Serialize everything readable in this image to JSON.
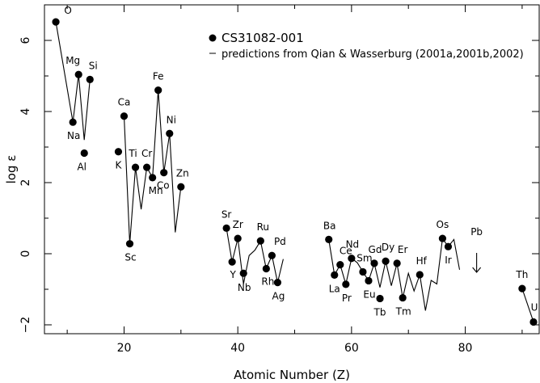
{
  "chart_data": {
    "type": "scatter",
    "xlabel": "Atomic Number (Z)",
    "ylabel": "log ε",
    "xlim": [
      6,
      93
    ],
    "ylim": [
      -2.25,
      7.0
    ],
    "x_ticks": [
      20,
      40,
      60,
      80
    ],
    "y_ticks": [
      -2,
      0,
      2,
      4,
      6
    ],
    "legend_position": "top-right",
    "legend": [
      {
        "marker": "dot",
        "text": "CS31082-001"
      },
      {
        "marker": "line",
        "text": "predictions from Qian & Wasserburg (2001a,2001b,2002)"
      }
    ],
    "series": [
      {
        "name": "CS31082-001",
        "points": [
          {
            "z": 8,
            "y": 6.52,
            "label": "O"
          },
          {
            "z": 11,
            "y": 3.7,
            "label": "Na"
          },
          {
            "z": 12,
            "y": 5.04,
            "label": "Mg"
          },
          {
            "z": 13,
            "y": 2.83,
            "label": "Al"
          },
          {
            "z": 14,
            "y": 4.9,
            "label": "Si"
          },
          {
            "z": 19,
            "y": 2.87,
            "label": "K"
          },
          {
            "z": 20,
            "y": 3.87,
            "label": "Ca"
          },
          {
            "z": 21,
            "y": 0.28,
            "label": "Sc"
          },
          {
            "z": 22,
            "y": 2.43,
            "label": "Ti"
          },
          {
            "z": 24,
            "y": 2.43,
            "label": "Cr"
          },
          {
            "z": 25,
            "y": 2.14,
            "label": "Mn"
          },
          {
            "z": 26,
            "y": 4.6,
            "label": "Fe"
          },
          {
            "z": 27,
            "y": 2.28,
            "label": "Co"
          },
          {
            "z": 28,
            "y": 3.38,
            "label": "Ni"
          },
          {
            "z": 30,
            "y": 1.88,
            "label": "Zn"
          },
          {
            "z": 38,
            "y": 0.72,
            "label": "Sr"
          },
          {
            "z": 39,
            "y": -0.23,
            "label": "Y"
          },
          {
            "z": 40,
            "y": 0.43,
            "label": "Zr"
          },
          {
            "z": 41,
            "y": -0.55,
            "label": "Nb"
          },
          {
            "z": 44,
            "y": 0.36,
            "label": "Ru"
          },
          {
            "z": 45,
            "y": -0.42,
            "label": "Rh"
          },
          {
            "z": 46,
            "y": -0.05,
            "label": "Pd"
          },
          {
            "z": 47,
            "y": -0.81,
            "label": "Ag"
          },
          {
            "z": 56,
            "y": 0.4,
            "label": "Ba"
          },
          {
            "z": 57,
            "y": -0.6,
            "label": "La"
          },
          {
            "z": 58,
            "y": -0.31,
            "label": "Ce"
          },
          {
            "z": 59,
            "y": -0.86,
            "label": "Pr"
          },
          {
            "z": 60,
            "y": -0.13,
            "label": "Nd"
          },
          {
            "z": 62,
            "y": -0.51,
            "label": "Sm"
          },
          {
            "z": 63,
            "y": -0.76,
            "label": "Eu"
          },
          {
            "z": 64,
            "y": -0.27,
            "label": "Gd"
          },
          {
            "z": 65,
            "y": -1.26,
            "label": "Tb"
          },
          {
            "z": 66,
            "y": -0.21,
            "label": "Dy"
          },
          {
            "z": 68,
            "y": -0.27,
            "label": "Er"
          },
          {
            "z": 69,
            "y": -1.24,
            "label": "Tm"
          },
          {
            "z": 72,
            "y": -0.59,
            "label": "Hf"
          },
          {
            "z": 76,
            "y": 0.43,
            "label": "Os"
          },
          {
            "z": 77,
            "y": 0.2,
            "label": "Ir"
          },
          {
            "z": 90,
            "y": -0.98,
            "label": "Th"
          },
          {
            "z": 92,
            "y": -1.92,
            "label": "U"
          }
        ]
      },
      {
        "name": "predictions from Qian & Wasserburg (2001a,2001b,2002)",
        "segments": [
          [
            [
              8,
              6.52
            ],
            [
              11,
              3.7
            ],
            [
              12,
              5.04
            ],
            [
              13,
              3.2
            ],
            [
              14,
              4.9
            ]
          ],
          [
            [
              20,
              3.87
            ],
            [
              21,
              0.28
            ],
            [
              22,
              2.43
            ],
            [
              23,
              1.25
            ],
            [
              24,
              2.43
            ],
            [
              25,
              2.14
            ],
            [
              26,
              4.6
            ],
            [
              27,
              2.28
            ],
            [
              28,
              3.38
            ],
            [
              29,
              0.6
            ],
            [
              30,
              1.88
            ]
          ],
          [
            [
              38,
              0.72
            ],
            [
              39,
              -0.23
            ],
            [
              40,
              0.43
            ],
            [
              41,
              -0.85
            ],
            [
              42,
              -0.05
            ],
            [
              43,
              0.1
            ],
            [
              44,
              0.36
            ],
            [
              45,
              -0.42
            ],
            [
              46,
              -0.05
            ],
            [
              47,
              -0.81
            ],
            [
              48,
              -0.15
            ]
          ],
          [
            [
              56,
              0.4
            ],
            [
              57,
              -0.6
            ],
            [
              58,
              -0.31
            ],
            [
              59,
              -0.86
            ],
            [
              60,
              -0.13
            ],
            [
              61,
              -0.25
            ],
            [
              62,
              -0.51
            ],
            [
              63,
              -0.76
            ],
            [
              64,
              -0.27
            ],
            [
              65,
              -0.95
            ],
            [
              66,
              -0.21
            ],
            [
              67,
              -0.9
            ],
            [
              68,
              -0.27
            ],
            [
              69,
              -1.24
            ],
            [
              70,
              -0.55
            ],
            [
              71,
              -1.05
            ],
            [
              72,
              -0.59
            ],
            [
              73,
              -1.6
            ],
            [
              74,
              -0.75
            ],
            [
              75,
              -0.85
            ],
            [
              76,
              0.43
            ],
            [
              77,
              0.2
            ],
            [
              78,
              0.4
            ],
            [
              79,
              -0.45
            ]
          ],
          [
            [
              90,
              -0.98
            ],
            [
              92,
              -1.92
            ]
          ]
        ]
      },
      {
        "name": "Pb",
        "upper_limit": {
          "z": 82,
          "y": -0.25,
          "label": "Pb"
        }
      }
    ]
  }
}
